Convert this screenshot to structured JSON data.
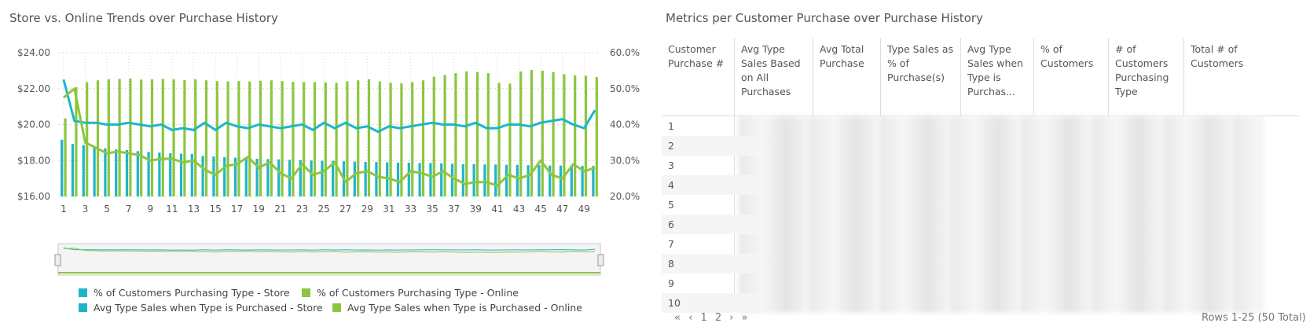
{
  "left_panel": {
    "title": "Store vs. Online Trends over Purchase History"
  },
  "right_panel": {
    "title": "Metrics per Customer Purchase over Purchase History"
  },
  "colors": {
    "store": "#1fb5c9",
    "online": "#8cc63f",
    "grid": "#d9d9d9"
  },
  "chart_data": {
    "type": "bar",
    "x": [
      1,
      2,
      3,
      4,
      5,
      6,
      7,
      8,
      9,
      10,
      11,
      12,
      13,
      14,
      15,
      16,
      17,
      18,
      19,
      20,
      21,
      22,
      23,
      24,
      25,
      26,
      27,
      28,
      29,
      30,
      31,
      32,
      33,
      34,
      35,
      36,
      37,
      38,
      39,
      40,
      41,
      42,
      43,
      44,
      45,
      46,
      47,
      48,
      49,
      50
    ],
    "x_tick_labels": [
      "1",
      "3",
      "5",
      "7",
      "9",
      "11",
      "13",
      "15",
      "17",
      "19",
      "21",
      "23",
      "25",
      "27",
      "29",
      "31",
      "33",
      "35",
      "37",
      "39",
      "41",
      "43",
      "45",
      "47",
      "49"
    ],
    "y_left": {
      "ticks": [
        "$16.00",
        "$18.00",
        "$20.00",
        "$22.00",
        "$24.00"
      ],
      "ylim": [
        16,
        24
      ]
    },
    "y_right": {
      "ticks": [
        "20.0%",
        "30.0%",
        "40.0%",
        "50.0%",
        "60.0%"
      ],
      "ylim": [
        20,
        60
      ]
    },
    "grid": true,
    "legend_position": "bottom",
    "series": [
      {
        "name": "% of Customers Purchasing Type - Store",
        "type": "bar",
        "axis": "right",
        "color": "#1fb5c9",
        "values": [
          35.8,
          34.6,
          34.3,
          33.9,
          33.4,
          33.1,
          32.9,
          32.6,
          32.4,
          32.2,
          32.0,
          31.9,
          31.8,
          31.3,
          31.1,
          30.9,
          30.8,
          30.6,
          30.5,
          30.4,
          30.3,
          30.2,
          30.1,
          30.0,
          29.9,
          29.9,
          29.8,
          29.7,
          29.6,
          29.6,
          29.5,
          29.4,
          29.4,
          29.3,
          29.3,
          29.2,
          29.1,
          29.0,
          29.0,
          28.9,
          28.9,
          28.8,
          28.8,
          28.7,
          28.7,
          28.6,
          28.6,
          28.5,
          28.5,
          28.5
        ]
      },
      {
        "name": "% of Customers Purchasing Type - Online",
        "type": "bar",
        "axis": "right",
        "color": "#8cc63f",
        "values": [
          41.7,
          50.4,
          51.8,
          52.3,
          52.6,
          52.7,
          52.8,
          52.5,
          52.6,
          52.7,
          52.6,
          52.4,
          52.6,
          52.3,
          52.1,
          52.0,
          52.1,
          52.0,
          52.2,
          52.3,
          52.1,
          51.9,
          51.8,
          51.8,
          51.7,
          51.6,
          52.0,
          52.3,
          52.6,
          52.0,
          51.6,
          51.5,
          51.8,
          52.3,
          53.3,
          53.8,
          54.3,
          54.8,
          54.6,
          54.3,
          51.6,
          51.4,
          54.8,
          55.2,
          55.0,
          54.6,
          54.0,
          53.7,
          53.6,
          53.2
        ]
      },
      {
        "name": "Avg Type Sales when Type is Purchased - Store",
        "type": "line",
        "axis": "left",
        "color": "#1fb5c9",
        "values": [
          22.5,
          20.2,
          20.1,
          20.1,
          20.0,
          20.0,
          20.1,
          20.0,
          19.9,
          20.0,
          19.7,
          19.8,
          19.7,
          20.1,
          19.7,
          20.1,
          19.9,
          19.8,
          20.0,
          19.9,
          19.8,
          19.9,
          20.0,
          19.7,
          20.1,
          19.8,
          20.1,
          19.8,
          19.9,
          19.6,
          19.9,
          19.8,
          19.9,
          20.0,
          20.1,
          20.0,
          20.0,
          19.9,
          20.1,
          19.8,
          19.8,
          20.0,
          20.0,
          19.9,
          20.1,
          20.2,
          20.3,
          20.0,
          19.8,
          20.8
        ]
      },
      {
        "name": "Avg Type Sales when Type is Purchased - Online",
        "type": "line",
        "axis": "left",
        "color": "#8cc63f",
        "values": [
          21.5,
          22.0,
          19.0,
          18.7,
          18.4,
          18.5,
          18.4,
          18.3,
          18.0,
          18.1,
          18.1,
          17.9,
          18.0,
          17.5,
          17.2,
          17.7,
          17.8,
          18.2,
          17.6,
          17.9,
          17.3,
          17.0,
          17.8,
          17.2,
          17.4,
          17.9,
          16.8,
          17.3,
          17.4,
          17.1,
          17.0,
          16.8,
          17.4,
          17.3,
          17.1,
          17.4,
          17.0,
          16.7,
          16.8,
          16.8,
          16.6,
          17.2,
          17.0,
          17.2,
          18.0,
          17.2,
          17.0,
          17.8,
          17.4,
          17.6
        ]
      }
    ]
  },
  "legend": [
    "% of Customers Purchasing Type - Store",
    "% of Customers Purchasing Type - Online",
    "Avg Type Sales when Type is Purchased - Store",
    "Avg Type Sales when Type is Purchased - Online"
  ],
  "table": {
    "headers": [
      "Customer Purchase #",
      "Avg Type Sales Based on All Purchases",
      "Avg Total Purchase",
      "Type Sales as % of Purchase(s)",
      "Avg Type Sales when Type is Purchas...",
      "% of Customers",
      "# of Customers Purchasing Type",
      "Total # of Customers"
    ],
    "rows": [
      "1",
      "2",
      "3",
      "4",
      "5",
      "6",
      "7",
      "8",
      "9",
      "10"
    ]
  },
  "pager": {
    "first_icon": "«",
    "prev_icon": "‹",
    "page_1": "1",
    "page_2": "2",
    "next_icon": "›",
    "last_icon": "»",
    "summary": "Rows 1-25 (50 Total)"
  }
}
